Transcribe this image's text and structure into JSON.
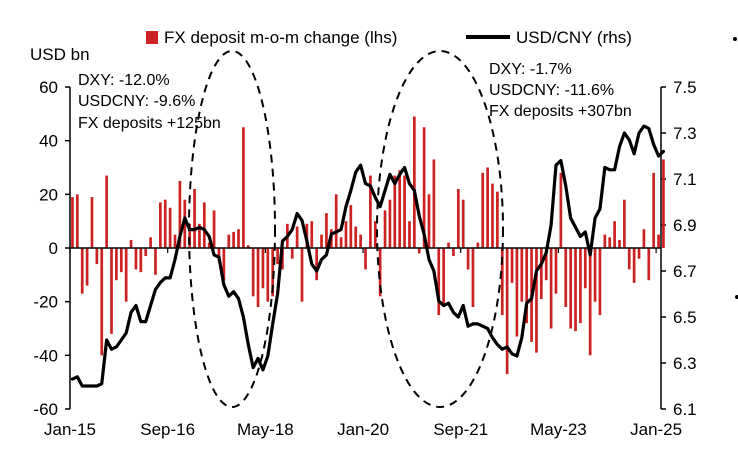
{
  "chart_data": {
    "type": "bar+line",
    "left_axis_label": "USD bn",
    "legend": [
      {
        "label": "FX deposit m-o-m change (lhs)",
        "kind": "bar",
        "color": "#cc2222"
      },
      {
        "label": "USD/CNY (rhs)",
        "kind": "line",
        "color": "#000000"
      }
    ],
    "x_tick_labels": [
      "Jan-15",
      "Sep-16",
      "May-18",
      "Jan-20",
      "Sep-21",
      "May-23",
      "Jan-25"
    ],
    "x_tick_months": [
      0,
      20,
      40,
      60,
      80,
      100,
      120
    ],
    "x_range_months": [
      0,
      121
    ],
    "left_axis": {
      "min": -60,
      "max": 60,
      "ticks": [
        "-60",
        "-40",
        "-20",
        "0",
        "20",
        "40",
        "60"
      ],
      "tick_values": [
        -60,
        -40,
        -20,
        0,
        20,
        40,
        60
      ]
    },
    "right_axis": {
      "min": 6.1,
      "max": 7.5,
      "ticks": [
        "6.1",
        "6.3",
        "6.5",
        "6.7",
        "6.9",
        "7.1",
        "7.3",
        "7.5"
      ],
      "tick_values": [
        6.1,
        6.3,
        6.5,
        6.7,
        6.9,
        7.1,
        7.3,
        7.5
      ]
    },
    "start_month": "2015-01",
    "series": [
      {
        "name": "FX deposit m-o-m change (lhs)",
        "type": "bar",
        "axis": "left",
        "values": [
          19,
          20,
          -17,
          -14,
          19,
          -6,
          -40,
          27,
          -32,
          -12,
          -9,
          -20,
          3,
          -8,
          -9,
          -3,
          4,
          -10,
          17,
          18,
          15,
          5,
          25,
          18,
          9,
          22,
          9,
          17,
          2,
          14,
          -5,
          -12,
          5,
          6,
          7,
          45,
          1,
          -18,
          -22,
          -15,
          -20,
          -18,
          -6,
          -8,
          9,
          -4,
          8,
          -20,
          9,
          10,
          -12,
          5,
          13,
          7,
          20,
          4,
          10,
          16,
          8,
          5,
          -8,
          27,
          10,
          -18,
          14,
          18,
          27,
          29,
          27,
          10,
          49,
          -2,
          45,
          20,
          33,
          -25,
          -22,
          2,
          -3,
          22,
          18,
          -8,
          -22,
          2,
          28,
          30,
          24,
          21,
          -25,
          -47,
          -13,
          -33,
          -20,
          -28,
          -35,
          -39,
          -19,
          -12,
          -30,
          -17,
          28,
          -22,
          -30,
          -31,
          -28,
          -15,
          -40,
          -20,
          -25,
          5,
          4,
          10,
          3,
          18,
          -8,
          -13,
          -4,
          7,
          -12,
          28,
          5,
          33
        ]
      },
      {
        "name": "USD/CNY (rhs)",
        "type": "line",
        "axis": "right",
        "values": [
          6.23,
          6.24,
          6.2,
          6.2,
          6.2,
          6.2,
          6.21,
          6.4,
          6.36,
          6.37,
          6.4,
          6.43,
          6.52,
          6.55,
          6.48,
          6.48,
          6.55,
          6.62,
          6.65,
          6.67,
          6.67,
          6.75,
          6.85,
          6.93,
          6.88,
          6.88,
          6.89,
          6.88,
          6.85,
          6.77,
          6.76,
          6.64,
          6.59,
          6.61,
          6.58,
          6.5,
          6.38,
          6.28,
          6.32,
          6.27,
          6.33,
          6.47,
          6.6,
          6.83,
          6.85,
          6.88,
          6.95,
          6.92,
          6.83,
          6.73,
          6.7,
          6.75,
          6.77,
          6.86,
          6.87,
          6.88,
          6.98,
          7.05,
          7.13,
          7.16,
          7.08,
          7.07,
          7.02,
          6.98,
          7.05,
          7.12,
          7.08,
          7.12,
          7.15,
          7.08,
          7.05,
          6.94,
          6.86,
          6.75,
          6.7,
          6.57,
          6.55,
          6.56,
          6.52,
          6.5,
          6.55,
          6.46,
          6.47,
          6.47,
          6.46,
          6.45,
          6.41,
          6.38,
          6.36,
          6.37,
          6.34,
          6.33,
          6.41,
          6.56,
          6.58,
          6.7,
          6.73,
          6.78,
          6.9,
          7.16,
          7.18,
          7.07,
          6.93,
          6.89,
          6.85,
          6.87,
          6.77,
          6.93,
          6.97,
          7.15,
          7.14,
          7.14,
          7.24,
          7.3,
          7.27,
          7.21,
          7.3,
          7.33,
          7.32,
          7.25,
          7.2,
          7.22
        ]
      }
    ],
    "annotations": [
      {
        "lines": [
          "DXY: -12.0%",
          "USDCNY: -9.6%",
          "FX deposits +125bn"
        ]
      },
      {
        "lines": [
          "DXY: -1.7%",
          "USDCNY: -11.6%",
          "FX deposits +307bn"
        ]
      }
    ],
    "highlight_ellipses": 2,
    "grid": false
  }
}
